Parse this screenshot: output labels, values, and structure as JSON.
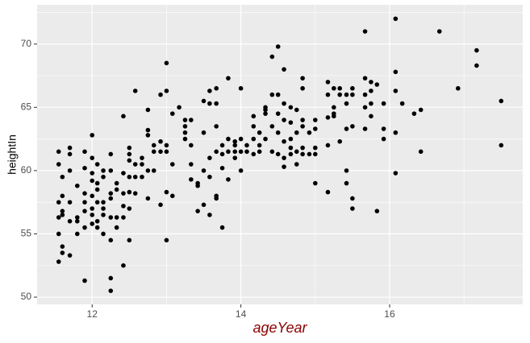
{
  "chart_data": {
    "type": "scatter",
    "x_label": "ageYear",
    "y_label": "heightIn",
    "color": "#000000",
    "grid": true,
    "xlim": [
      11.26,
      17.79
    ],
    "ylim": [
      49.43,
      73.1
    ],
    "xticks": [
      12,
      14,
      16
    ],
    "yticks": [
      50,
      55,
      60,
      65,
      70
    ],
    "x": [
      11.55,
      11.55,
      11.55,
      11.55,
      11.55,
      11.55,
      11.6,
      11.6,
      11.6,
      11.6,
      11.6,
      11.6,
      11.7,
      11.7,
      11.7,
      11.7,
      11.7,
      11.7,
      11.8,
      11.8,
      11.8,
      11.8,
      11.9,
      11.9,
      11.9,
      11.9,
      11.9,
      11.9,
      11.9,
      12.0,
      12.0,
      12.0,
      12.0,
      12.0,
      12.0,
      12.0,
      12.0,
      12.07,
      12.07,
      12.07,
      12.07,
      12.07,
      12.07,
      12.15,
      12.15,
      12.15,
      12.15,
      12.15,
      12.15,
      12.25,
      12.25,
      12.25,
      12.25,
      12.25,
      12.25,
      12.25,
      12.25,
      12.33,
      12.33,
      12.33,
      12.33,
      12.42,
      12.42,
      12.42,
      12.42,
      12.42,
      12.42,
      12.5,
      12.5,
      12.5,
      12.5,
      12.5,
      12.5,
      12.5,
      12.58,
      12.58,
      12.58,
      12.58,
      12.67,
      12.67,
      12.67,
      12.75,
      12.75,
      12.75,
      12.75,
      12.75,
      12.83,
      12.83,
      12.83,
      12.92,
      12.92,
      12.92,
      12.92,
      13.0,
      13.0,
      13.0,
      13.0,
      13.0,
      13.0,
      13.08,
      13.08,
      13.08,
      13.17,
      13.25,
      13.25,
      13.25,
      13.25,
      13.33,
      13.33,
      13.33,
      13.33,
      13.42,
      13.42,
      13.42,
      13.5,
      13.5,
      13.5,
      13.5,
      13.58,
      13.58,
      13.58,
      13.58,
      13.58,
      13.67,
      13.67,
      13.67,
      13.67,
      13.67,
      13.67,
      13.75,
      13.75,
      13.75,
      13.75,
      13.83,
      13.83,
      13.83,
      13.83,
      13.92,
      13.92,
      13.92,
      13.92,
      14.0,
      14.0,
      14.0,
      14.0,
      14.08,
      14.08,
      14.17,
      14.17,
      14.17,
      14.17,
      14.25,
      14.25,
      14.25,
      14.33,
      14.33,
      14.33,
      14.33,
      14.42,
      14.42,
      14.42,
      14.42,
      14.5,
      14.5,
      14.5,
      14.5,
      14.5,
      14.58,
      14.58,
      14.58,
      14.58,
      14.58,
      14.58,
      14.67,
      14.67,
      14.67,
      14.67,
      14.67,
      14.75,
      14.75,
      14.75,
      14.75,
      14.83,
      14.83,
      14.83,
      14.83,
      14.83,
      14.83,
      14.92,
      14.92,
      15.0,
      15.0,
      15.0,
      15.0,
      15.0,
      15.17,
      15.17,
      15.17,
      15.17,
      15.17,
      15.25,
      15.25,
      15.25,
      15.25,
      15.33,
      15.33,
      15.33,
      15.42,
      15.42,
      15.42,
      15.42,
      15.42,
      15.5,
      15.5,
      15.5,
      15.5,
      15.5,
      15.67,
      15.67,
      15.67,
      15.67,
      15.67,
      15.75,
      15.75,
      15.75,
      15.75,
      15.83,
      15.83,
      15.92,
      15.92,
      15.92,
      16.08,
      16.08,
      16.08,
      16.08,
      16.08,
      16.17,
      16.33,
      16.42,
      16.42,
      16.67,
      16.92,
      17.17,
      17.17,
      17.5,
      17.5
    ],
    "values": [
      61.5,
      60.5,
      57.5,
      55,
      52.8,
      56.3,
      59.5,
      58,
      56.8,
      56.5,
      54,
      53.5,
      61.8,
      61.3,
      60,
      57.5,
      56,
      53.3,
      58.8,
      56,
      55,
      56.3,
      61.5,
      60.2,
      58.2,
      57.5,
      56.8,
      55.5,
      51.3,
      62.8,
      61,
      59.8,
      59.2,
      58,
      57,
      56.5,
      55.8,
      60.5,
      59,
      58.5,
      57.5,
      56,
      55.5,
      60,
      59.5,
      57.5,
      55,
      56.5,
      57,
      61.3,
      60,
      58.2,
      57.8,
      56.3,
      51.5,
      50.5,
      54.5,
      59,
      58.5,
      56.3,
      55.5,
      64.3,
      59.8,
      58.2,
      57.2,
      56.3,
      52.5,
      61.8,
      61.3,
      60.8,
      59.5,
      58.3,
      57,
      54.5,
      66.3,
      60.5,
      59.5,
      58.2,
      61,
      59.5,
      60.5,
      64.8,
      63.2,
      62.8,
      60,
      57.8,
      62,
      61.5,
      60,
      66,
      62.3,
      61.5,
      57.3,
      68.5,
      66.3,
      62,
      61.5,
      58.3,
      54.5,
      64.5,
      60.5,
      58,
      65,
      63.5,
      63,
      62.5,
      64,
      64,
      62,
      60.5,
      59.3,
      59,
      56.8,
      58.8,
      65.5,
      63,
      60,
      57.3,
      66.3,
      65.3,
      61,
      56.5,
      59.5,
      66.5,
      65.3,
      63.5,
      61.5,
      58,
      57.8,
      62,
      61.3,
      60.2,
      55.5,
      67.3,
      62.5,
      61.5,
      59.3,
      62,
      61.5,
      61,
      62.3,
      66.5,
      62.5,
      61.5,
      60,
      61.5,
      62,
      64.3,
      63.5,
      62.5,
      61.3,
      63,
      62,
      61.5,
      65,
      64.8,
      64.5,
      62.5,
      69,
      66,
      63.5,
      61.5,
      69.8,
      66,
      64.5,
      63,
      61.3,
      68,
      65.3,
      64,
      61,
      60.3,
      62.3,
      65,
      63.8,
      62.5,
      61.8,
      61.3,
      64.8,
      63,
      61.5,
      60.5,
      67.3,
      66.5,
      64,
      63.5,
      61.8,
      61.3,
      63,
      61.3,
      64,
      63.3,
      61.8,
      61.3,
      59,
      67,
      66,
      64.2,
      62,
      58.3,
      66.5,
      65,
      64.5,
      64.3,
      66,
      66.5,
      62.3,
      66,
      65.3,
      63.3,
      60,
      59,
      66.5,
      66,
      63.5,
      57.8,
      57,
      71,
      67.3,
      66,
      63.3,
      65,
      67,
      66.3,
      64.3,
      65.3,
      66.8,
      56.8,
      65.3,
      63.3,
      62.5,
      72,
      67.8,
      66.3,
      63,
      59.8,
      65.3,
      64.5,
      64.8,
      61.5,
      71,
      66.5,
      69.5,
      68.3,
      65.5,
      62
    ]
  }
}
